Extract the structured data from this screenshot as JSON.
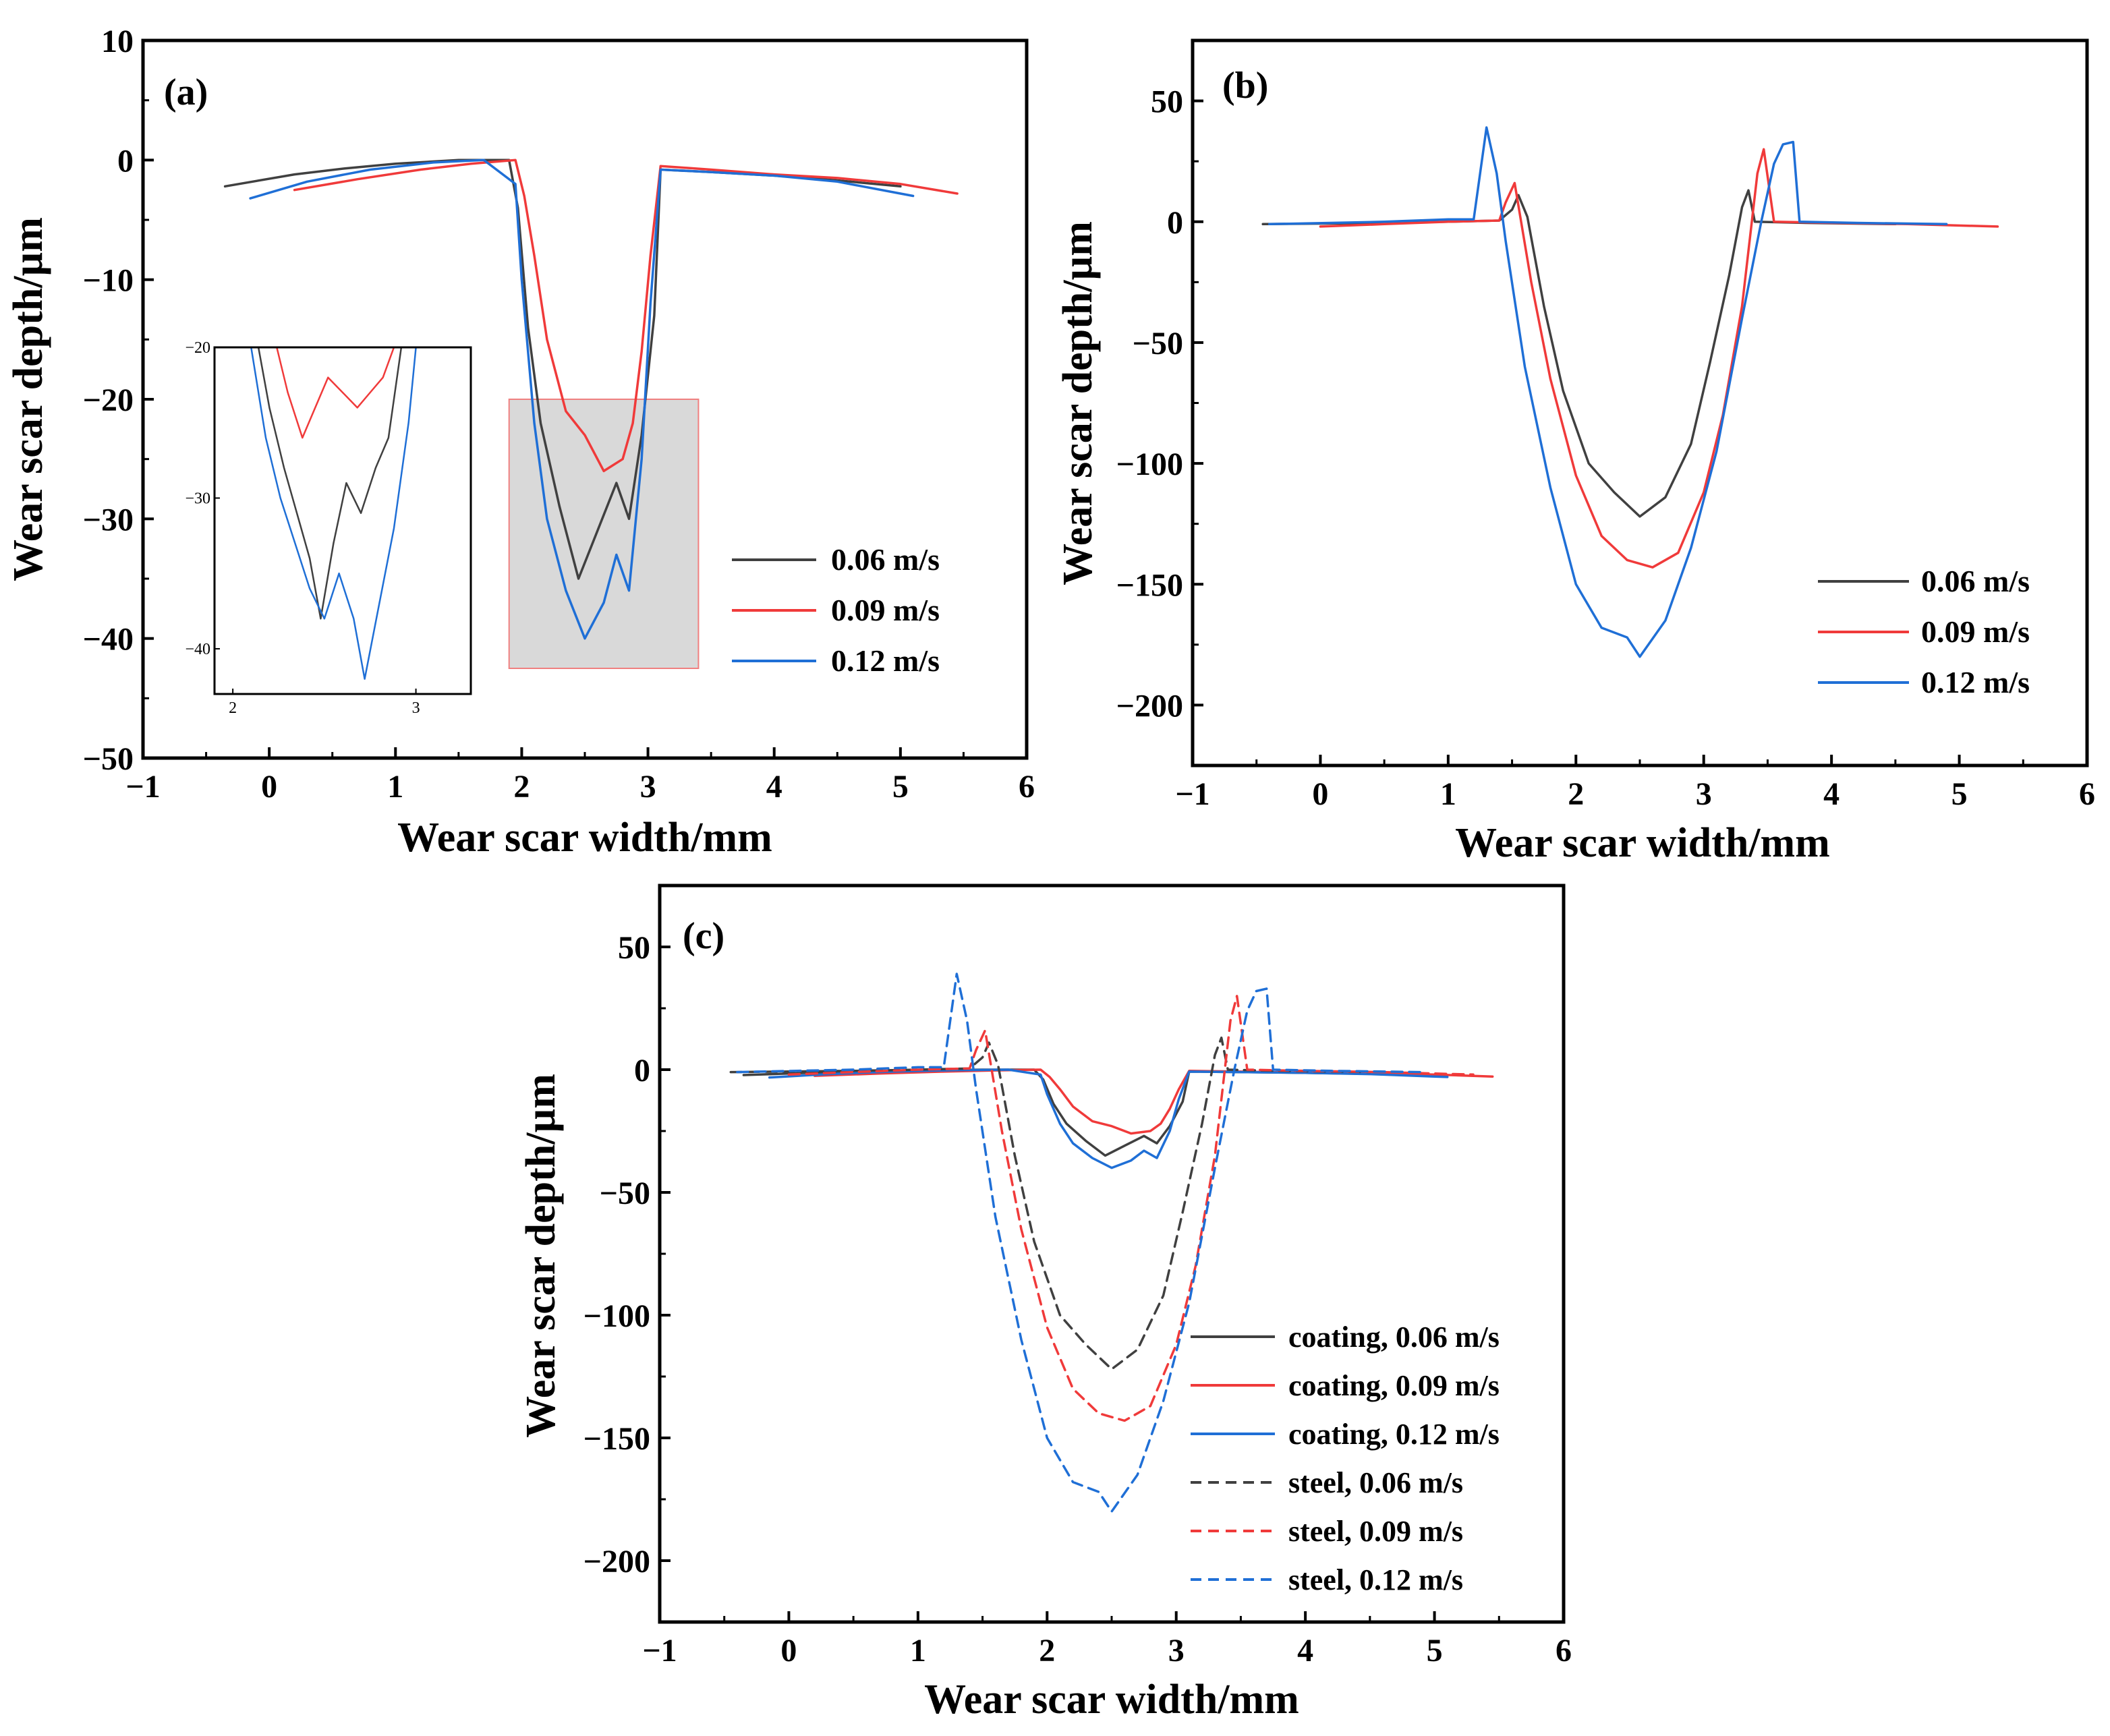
{
  "figure": {
    "colors": {
      "v006": "#404040",
      "v009": "#f03a3a",
      "v012": "#1f6fd6",
      "highlight_fill": "#d9d9d9",
      "highlight_stroke": "#f08080"
    }
  },
  "chart_data": [
    {
      "panel": "(a)",
      "type": "line",
      "xlabel": "Wear scar width/mm",
      "ylabel": "Wear scar depth/µm",
      "xlim": [
        -1,
        6
      ],
      "ylim": [
        -50,
        10
      ],
      "xticks": [
        {
          "value": -1,
          "label": "−1"
        },
        {
          "value": 0,
          "label": "0"
        },
        {
          "value": 1,
          "label": "1"
        },
        {
          "value": 2,
          "label": "2"
        },
        {
          "value": 3,
          "label": "3"
        },
        {
          "value": 4,
          "label": "4"
        },
        {
          "value": 5,
          "label": "5"
        },
        {
          "value": 6,
          "label": "6"
        }
      ],
      "yticks": [
        {
          "value": 10,
          "label": "10"
        },
        {
          "value": 0,
          "label": "0"
        },
        {
          "value": -10,
          "label": "−10"
        },
        {
          "value": -20,
          "label": "−20"
        },
        {
          "value": -30,
          "label": "−30"
        },
        {
          "value": -40,
          "label": "−40"
        },
        {
          "value": -50,
          "label": "−50"
        }
      ],
      "legend": {
        "position": "right-middle"
      },
      "highlight_region": {
        "x": [
          1.9,
          3.4
        ],
        "y": [
          -42.5,
          -20
        ]
      },
      "series": [
        {
          "name": "0.06 m/s",
          "color_key": "v006",
          "dash": false,
          "x": [
            -0.35,
            0.2,
            0.6,
            1.0,
            1.5,
            1.9,
            1.97,
            2.05,
            2.15,
            2.3,
            2.45,
            2.6,
            2.75,
            2.85,
            2.95,
            3.05,
            3.1,
            3.5,
            4.0,
            4.5,
            5.0
          ],
          "y": [
            -2.2,
            -1.2,
            -0.7,
            -0.3,
            0,
            0,
            -4,
            -14,
            -22,
            -29,
            -35,
            -31,
            -27,
            -30,
            -23,
            -13,
            -0.8,
            -1.0,
            -1.3,
            -1.7,
            -2.2
          ]
        },
        {
          "name": "0.09 m/s",
          "color_key": "v009",
          "dash": false,
          "x": [
            0.2,
            0.7,
            1.2,
            1.6,
            1.95,
            2.02,
            2.1,
            2.2,
            2.35,
            2.5,
            2.65,
            2.8,
            2.88,
            2.95,
            3.02,
            3.1,
            3.5,
            4.0,
            4.5,
            5.0,
            5.45
          ],
          "y": [
            -2.5,
            -1.6,
            -0.8,
            -0.3,
            0,
            -3,
            -8,
            -15,
            -21,
            -23,
            -26,
            -25,
            -22,
            -16,
            -8,
            -0.5,
            -0.8,
            -1.2,
            -1.5,
            -2.0,
            -2.8
          ]
        },
        {
          "name": "0.12 m/s",
          "color_key": "v012",
          "dash": false,
          "x": [
            -0.15,
            0.3,
            0.8,
            1.3,
            1.7,
            1.95,
            2.0,
            2.1,
            2.2,
            2.35,
            2.5,
            2.65,
            2.75,
            2.85,
            2.95,
            3.02,
            3.1,
            3.5,
            4.0,
            4.5,
            5.0,
            5.1
          ],
          "y": [
            -3.2,
            -1.8,
            -0.8,
            -0.2,
            0,
            -2,
            -10,
            -22,
            -30,
            -36,
            -40,
            -37,
            -33,
            -36,
            -25,
            -12,
            -0.8,
            -1.0,
            -1.3,
            -1.8,
            -2.8,
            -3.0
          ]
        }
      ],
      "inset": {
        "xlim": [
          1.9,
          3.3
        ],
        "ylim": [
          -43,
          -20
        ],
        "xticks": [
          {
            "value": 2,
            "label": "2"
          },
          {
            "value": 3,
            "label": "3"
          }
        ],
        "yticks": [
          {
            "value": -20,
            "label": "−20"
          },
          {
            "value": -30,
            "label": "−30"
          },
          {
            "value": -40,
            "label": "−40"
          }
        ],
        "series": [
          {
            "name": "0.06 m/s",
            "color_key": "v006",
            "x": [
              2.14,
              2.2,
              2.28,
              2.35,
              2.42,
              2.48,
              2.55,
              2.62,
              2.7,
              2.78,
              2.85,
              2.92
            ],
            "y": [
              -20,
              -24,
              -28,
              -31,
              -34,
              -38,
              -33,
              -29,
              -31,
              -28,
              -26,
              -20
            ]
          },
          {
            "name": "0.09 m/s",
            "color_key": "v009",
            "x": [
              2.24,
              2.3,
              2.38,
              2.45,
              2.52,
              2.6,
              2.68,
              2.75,
              2.82,
              2.88
            ],
            "y": [
              -20,
              -23,
              -26,
              -24,
              -22,
              -23,
              -24,
              -23,
              -22,
              -20
            ]
          },
          {
            "name": "0.12 m/s",
            "color_key": "v012",
            "x": [
              2.1,
              2.18,
              2.26,
              2.34,
              2.42,
              2.5,
              2.58,
              2.66,
              2.72,
              2.8,
              2.88,
              2.96,
              3.0
            ],
            "y": [
              -20,
              -26,
              -30,
              -33,
              -36,
              -38,
              -35,
              -38,
              -42,
              -37,
              -32,
              -25,
              -20
            ]
          }
        ]
      }
    },
    {
      "panel": "(b)",
      "type": "line",
      "xlabel": "Wear scar width/mm",
      "ylabel": "Wear scar depth/µm",
      "xlim": [
        -1,
        6
      ],
      "ylim": [
        -225,
        75
      ],
      "xticks": [
        {
          "value": -1,
          "label": "−1"
        },
        {
          "value": 0,
          "label": "0"
        },
        {
          "value": 1,
          "label": "1"
        },
        {
          "value": 2,
          "label": "2"
        },
        {
          "value": 3,
          "label": "3"
        },
        {
          "value": 4,
          "label": "4"
        },
        {
          "value": 5,
          "label": "5"
        },
        {
          "value": 6,
          "label": "6"
        }
      ],
      "yticks": [
        {
          "value": 50,
          "label": "50"
        },
        {
          "value": 0,
          "label": "0"
        },
        {
          "value": -50,
          "label": "−50"
        },
        {
          "value": -100,
          "label": "−100"
        },
        {
          "value": -150,
          "label": "−150"
        },
        {
          "value": -200,
          "label": "−200"
        }
      ],
      "legend": {
        "position": "bottom-right"
      },
      "series": [
        {
          "name": "0.06 m/s",
          "color_key": "v006",
          "dash": false,
          "x": [
            -0.45,
            0.5,
            1.0,
            1.4,
            1.5,
            1.55,
            1.62,
            1.75,
            1.9,
            2.1,
            2.3,
            2.5,
            2.7,
            2.9,
            3.05,
            3.2,
            3.3,
            3.35,
            3.4,
            3.8,
            4.5
          ],
          "y": [
            -1,
            -0.5,
            0,
            0.5,
            5,
            11,
            2,
            -35,
            -70,
            -100,
            -112,
            -122,
            -114,
            -92,
            -58,
            -22,
            6,
            13,
            0,
            -0.5,
            -1
          ]
        },
        {
          "name": "0.09 m/s",
          "color_key": "v009",
          "dash": false,
          "x": [
            0,
            0.5,
            1.0,
            1.4,
            1.45,
            1.52,
            1.65,
            1.8,
            2.0,
            2.2,
            2.4,
            2.6,
            2.8,
            3.0,
            3.15,
            3.3,
            3.42,
            3.47,
            3.55,
            4.0,
            4.6,
            5.3
          ],
          "y": [
            -2,
            -1,
            0,
            0.5,
            8,
            16,
            -25,
            -65,
            -105,
            -130,
            -140,
            -143,
            -137,
            -112,
            -80,
            -35,
            20,
            30,
            0,
            -0.5,
            -1,
            -2
          ]
        },
        {
          "name": "0.12 m/s",
          "color_key": "v012",
          "dash": false,
          "x": [
            -0.4,
            0.5,
            1.0,
            1.2,
            1.25,
            1.3,
            1.38,
            1.45,
            1.6,
            1.8,
            2.0,
            2.2,
            2.4,
            2.5,
            2.7,
            2.9,
            3.1,
            3.3,
            3.45,
            3.55,
            3.62,
            3.7,
            3.75,
            4.2,
            4.9
          ],
          "y": [
            -1,
            0,
            1,
            1,
            20,
            39,
            20,
            -8,
            -60,
            -110,
            -150,
            -168,
            -172,
            -180,
            -165,
            -135,
            -95,
            -40,
            0,
            24,
            32,
            33,
            0,
            -0.5,
            -1
          ]
        }
      ]
    },
    {
      "panel": "(c)",
      "type": "line",
      "xlabel": "Wear scar width/mm",
      "ylabel": "Wear scar depth/µm",
      "xlim": [
        -1,
        6
      ],
      "ylim": [
        -225,
        75
      ],
      "xticks": [
        {
          "value": -1,
          "label": "−1"
        },
        {
          "value": 0,
          "label": "0"
        },
        {
          "value": 1,
          "label": "1"
        },
        {
          "value": 2,
          "label": "2"
        },
        {
          "value": 3,
          "label": "3"
        },
        {
          "value": 4,
          "label": "4"
        },
        {
          "value": 5,
          "label": "5"
        },
        {
          "value": 6,
          "label": "6"
        }
      ],
      "yticks": [
        {
          "value": 50,
          "label": "50"
        },
        {
          "value": 0,
          "label": "0"
        },
        {
          "value": -50,
          "label": "−50"
        },
        {
          "value": -100,
          "label": "−100"
        },
        {
          "value": -150,
          "label": "−150"
        },
        {
          "value": -200,
          "label": "−200"
        }
      ],
      "legend": {
        "position": "bottom-right"
      },
      "series": [
        {
          "name": "coating, 0.06 m/s",
          "color_key": "v006",
          "dash": false,
          "x": [
            -0.35,
            0.2,
            0.6,
            1.0,
            1.5,
            1.9,
            1.97,
            2.05,
            2.15,
            2.3,
            2.45,
            2.6,
            2.75,
            2.85,
            2.95,
            3.05,
            3.1,
            3.5,
            4.0,
            4.5,
            5.0
          ],
          "y": [
            -2.2,
            -1.2,
            -0.7,
            -0.3,
            0,
            0,
            -4,
            -14,
            -22,
            -29,
            -35,
            -31,
            -27,
            -30,
            -23,
            -13,
            -0.8,
            -1.0,
            -1.3,
            -1.7,
            -2.2
          ]
        },
        {
          "name": "coating, 0.09 m/s",
          "color_key": "v009",
          "dash": false,
          "x": [
            0.2,
            0.7,
            1.2,
            1.6,
            1.95,
            2.02,
            2.1,
            2.2,
            2.35,
            2.5,
            2.65,
            2.8,
            2.88,
            2.95,
            3.02,
            3.1,
            3.5,
            4.0,
            4.5,
            5.0,
            5.45
          ],
          "y": [
            -2.5,
            -1.6,
            -0.8,
            -0.3,
            0,
            -3,
            -8,
            -15,
            -21,
            -23,
            -26,
            -25,
            -22,
            -16,
            -8,
            -0.5,
            -0.8,
            -1.2,
            -1.5,
            -2.0,
            -2.8
          ]
        },
        {
          "name": "coating, 0.12 m/s",
          "color_key": "v012",
          "dash": false,
          "x": [
            -0.15,
            0.3,
            0.8,
            1.3,
            1.7,
            1.95,
            2.0,
            2.1,
            2.2,
            2.35,
            2.5,
            2.65,
            2.75,
            2.85,
            2.95,
            3.02,
            3.1,
            3.5,
            4.0,
            4.5,
            5.0,
            5.1
          ],
          "y": [
            -3.2,
            -1.8,
            -0.8,
            -0.2,
            0,
            -2,
            -10,
            -22,
            -30,
            -36,
            -40,
            -37,
            -33,
            -36,
            -25,
            -12,
            -0.8,
            -1.0,
            -1.3,
            -1.8,
            -2.8,
            -3.0
          ]
        },
        {
          "name": "steel, 0.06 m/s",
          "color_key": "v006",
          "dash": true,
          "x": [
            -0.45,
            0.5,
            1.0,
            1.4,
            1.5,
            1.55,
            1.62,
            1.75,
            1.9,
            2.1,
            2.3,
            2.5,
            2.7,
            2.9,
            3.05,
            3.2,
            3.3,
            3.35,
            3.4,
            3.8,
            4.5
          ],
          "y": [
            -1,
            -0.5,
            0,
            0.5,
            5,
            11,
            2,
            -35,
            -70,
            -100,
            -112,
            -122,
            -114,
            -92,
            -58,
            -22,
            6,
            13,
            0,
            -0.5,
            -1
          ]
        },
        {
          "name": "steel, 0.09 m/s",
          "color_key": "v009",
          "dash": true,
          "x": [
            0,
            0.5,
            1.0,
            1.4,
            1.45,
            1.52,
            1.65,
            1.8,
            2.0,
            2.2,
            2.4,
            2.6,
            2.8,
            3.0,
            3.15,
            3.3,
            3.42,
            3.47,
            3.55,
            4.0,
            4.6,
            5.3
          ],
          "y": [
            -2,
            -1,
            0,
            0.5,
            8,
            16,
            -25,
            -65,
            -105,
            -130,
            -140,
            -143,
            -137,
            -112,
            -80,
            -35,
            20,
            30,
            0,
            -0.5,
            -1,
            -2
          ]
        },
        {
          "name": "steel, 0.12 m/s",
          "color_key": "v012",
          "dash": true,
          "x": [
            -0.4,
            0.5,
            1.0,
            1.2,
            1.25,
            1.3,
            1.38,
            1.45,
            1.6,
            1.8,
            2.0,
            2.2,
            2.4,
            2.5,
            2.7,
            2.9,
            3.1,
            3.3,
            3.45,
            3.55,
            3.62,
            3.7,
            3.75,
            4.2,
            4.9
          ],
          "y": [
            -1,
            0,
            1,
            1,
            20,
            39,
            20,
            -8,
            -60,
            -110,
            -150,
            -168,
            -172,
            -180,
            -165,
            -135,
            -95,
            -40,
            0,
            24,
            32,
            33,
            0,
            -0.5,
            -1
          ]
        }
      ]
    }
  ]
}
